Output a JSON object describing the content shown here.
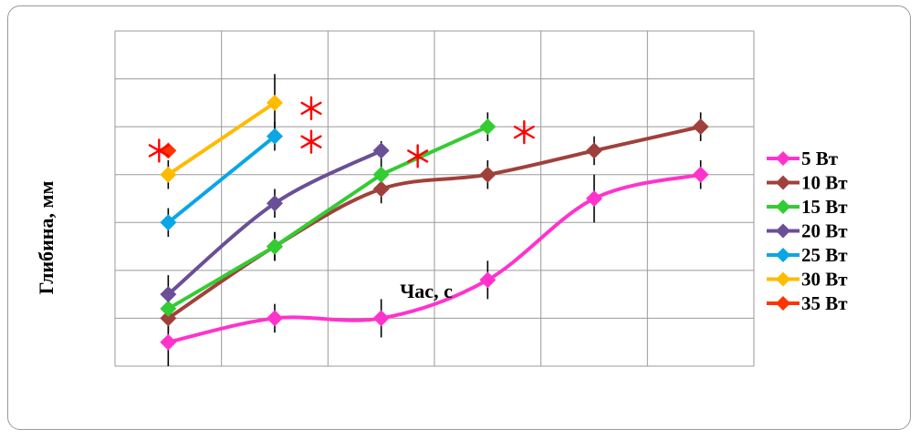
{
  "chart_data": {
    "type": "line",
    "xlabel": "Час, с",
    "ylabel": "Глибина, мм",
    "xlim": [
      0.5,
      6.5
    ],
    "ylim": [
      0,
      7
    ],
    "grid": true,
    "legend_position": "right",
    "marker": "diamond",
    "significance_marker": "*",
    "series": [
      {
        "name": "5 Вт",
        "color": "#ff33cc",
        "x": [
          1,
          2,
          3,
          4,
          5,
          6
        ],
        "y": [
          0.5,
          1.0,
          1.0,
          1.8,
          3.5,
          4.0
        ],
        "err": [
          0.5,
          0.3,
          0.4,
          0.4,
          0.5,
          0.3
        ],
        "smooth": true,
        "starred": []
      },
      {
        "name": "10 Вт",
        "color": "#a0403c",
        "x": [
          1,
          2,
          3,
          4,
          5,
          6
        ],
        "y": [
          1.0,
          2.5,
          3.7,
          4.0,
          4.5,
          5.0
        ],
        "err": [
          0.3,
          0.3,
          0.3,
          0.3,
          0.3,
          0.3
        ],
        "smooth": true,
        "starred": []
      },
      {
        "name": "15 Вт",
        "color": "#33cc33",
        "x": [
          1,
          2,
          3,
          4
        ],
        "y": [
          1.2,
          2.5,
          4.0,
          5.0
        ],
        "err": [
          0.3,
          0.3,
          0.3,
          0.3
        ],
        "smooth": false,
        "starred": [
          4
        ]
      },
      {
        "name": "20 Вт",
        "color": "#6a4f96",
        "x": [
          1,
          2,
          3
        ],
        "y": [
          1.5,
          3.4,
          4.5
        ],
        "err": [
          0.4,
          0.3,
          0.2
        ],
        "smooth": true,
        "starred": [
          3
        ]
      },
      {
        "name": "25 Вт",
        "color": "#0aa6e6",
        "x": [
          1,
          2
        ],
        "y": [
          3.0,
          4.8
        ],
        "err": [
          0.3,
          0.3
        ],
        "smooth": false,
        "starred": [
          2
        ]
      },
      {
        "name": "30 Вт",
        "color": "#ffbb00",
        "x": [
          1,
          2
        ],
        "y": [
          4.0,
          5.5
        ],
        "err": [
          0.3,
          0.6
        ],
        "smooth": false,
        "starred": [
          2
        ]
      },
      {
        "name": "35 Вт",
        "color": "#ff3300",
        "x": [
          1
        ],
        "y": [
          4.5
        ],
        "err": [
          0
        ],
        "smooth": false,
        "starred": [
          1
        ]
      }
    ]
  },
  "colors": {
    "frame": "#9a9a9a",
    "grid": "#9a9a9a",
    "star": "#ff0000",
    "errorbar": "#000000"
  }
}
